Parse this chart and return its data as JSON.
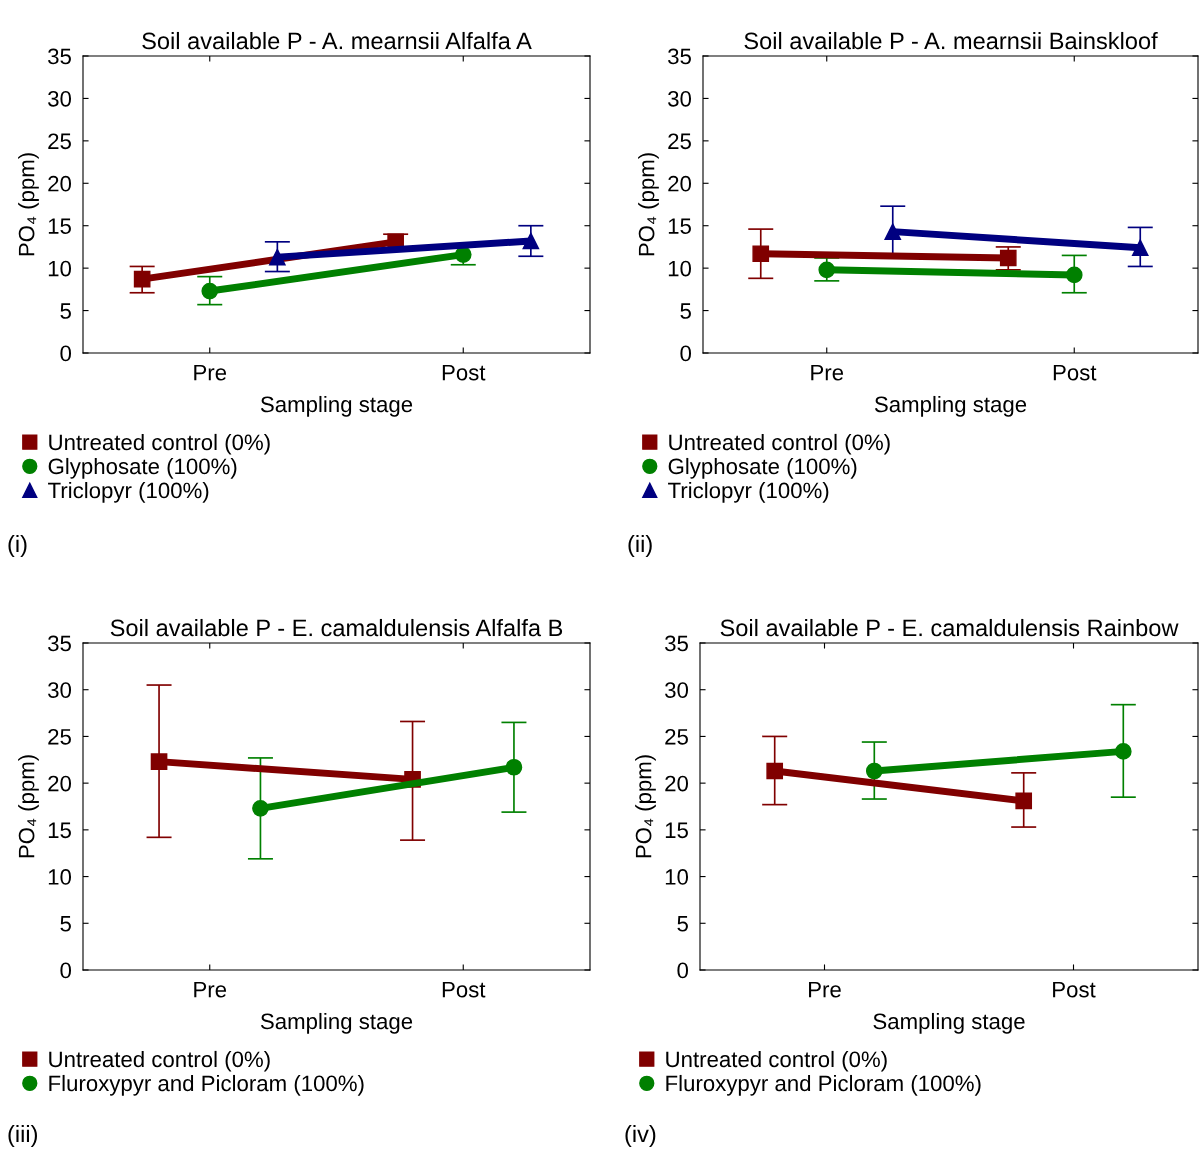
{
  "chart_data": [
    {
      "type": "line",
      "title": "Soil available P - A. mearnsii Alfalfa A",
      "xlabel": "Sampling stage",
      "ylabel": "PO₄ (ppm)",
      "categories": [
        "Pre",
        "Post"
      ],
      "ylim": [
        0,
        35
      ],
      "yticks": [
        0,
        5,
        10,
        15,
        20,
        25,
        30,
        35
      ],
      "grid": false,
      "legend": "bottom",
      "line_style": "solid",
      "annotations": [
        "(i)"
      ],
      "series": [
        {
          "name": "Untreated control (0%)",
          "color": "#800000",
          "marker": "square",
          "values": [
            8.7,
            13.1
          ],
          "errors": [
            [
              7.1,
              10.2
            ],
            [
              12.3,
              14.0
            ]
          ]
        },
        {
          "name": "Glyphosate (100%)",
          "color": "#008000",
          "marker": "circle",
          "values": [
            7.3,
            11.6
          ],
          "errors": [
            [
              5.7,
              9.0
            ],
            [
              10.4,
              12.5
            ]
          ]
        },
        {
          "name": "Triclopyr (100%)",
          "color": "#000080",
          "marker": "triangle",
          "values": [
            11.3,
            13.2
          ],
          "errors": [
            [
              9.6,
              13.1
            ],
            [
              11.4,
              15.0
            ]
          ]
        }
      ]
    },
    {
      "type": "line",
      "title": "Soil available P - A. mearnsii Bainskloof",
      "xlabel": "Sampling stage",
      "ylabel": "PO₄ (ppm)",
      "categories": [
        "Pre",
        "Post"
      ],
      "ylim": [
        0,
        35
      ],
      "yticks": [
        0,
        5,
        10,
        15,
        20,
        25,
        30,
        35
      ],
      "grid": false,
      "legend": "bottom",
      "line_style": "solid",
      "annotations": [
        "(ii)"
      ],
      "series": [
        {
          "name": "Untreated control (0%)",
          "color": "#800000",
          "marker": "square",
          "values": [
            11.7,
            11.2
          ],
          "errors": [
            [
              8.8,
              14.6
            ],
            [
              9.8,
              12.5
            ]
          ]
        },
        {
          "name": "Glyphosate (100%)",
          "color": "#008000",
          "marker": "circle",
          "values": [
            9.8,
            9.2
          ],
          "errors": [
            [
              8.5,
              11.2
            ],
            [
              7.1,
              11.5
            ]
          ]
        },
        {
          "name": "Triclopyr (100%)",
          "color": "#000080",
          "marker": "triangle",
          "values": [
            14.3,
            12.4
          ],
          "errors": [
            [
              11.3,
              17.3
            ],
            [
              10.2,
              14.8
            ]
          ]
        }
      ]
    },
    {
      "type": "line",
      "title": "Soil available P - E. camaldulensis Alfalfa B",
      "xlabel": "Sampling stage",
      "ylabel": "PO₄ (ppm)",
      "categories": [
        "Pre",
        "Post"
      ],
      "ylim": [
        0,
        35
      ],
      "yticks": [
        0,
        5,
        10,
        15,
        20,
        25,
        30,
        35
      ],
      "grid": false,
      "legend": "bottom",
      "line_style": "solid",
      "annotations": [
        "(iii)"
      ],
      "series": [
        {
          "name": "Untreated control (0%)",
          "color": "#800000",
          "marker": "square",
          "values": [
            22.3,
            20.4
          ],
          "errors": [
            [
              14.2,
              30.5
            ],
            [
              13.9,
              26.6
            ]
          ]
        },
        {
          "name": "Fluroxypyr and Picloram (100%)",
          "color": "#008000",
          "marker": "circle",
          "values": [
            17.3,
            21.7
          ],
          "errors": [
            [
              11.9,
              22.7
            ],
            [
              16.9,
              26.5
            ]
          ]
        }
      ]
    },
    {
      "type": "line",
      "title": "Soil available P - E. camaldulensis Rainbow",
      "xlabel": "Sampling stage",
      "ylabel": "PO₄ (ppm)",
      "categories": [
        "Pre",
        "Post"
      ],
      "ylim": [
        0,
        35
      ],
      "yticks": [
        0,
        5,
        10,
        15,
        20,
        25,
        30,
        35
      ],
      "grid": false,
      "legend": "bottom",
      "line_style": "solid",
      "annotations": [
        "(iv)"
      ],
      "series": [
        {
          "name": "Untreated control (0%)",
          "color": "#800000",
          "marker": "square",
          "values": [
            21.3,
            18.1
          ],
          "errors": [
            [
              17.7,
              25.0
            ],
            [
              15.3,
              21.1
            ]
          ]
        },
        {
          "name": "Fluroxypyr and Picloram (100%)",
          "color": "#008000",
          "marker": "circle",
          "values": [
            21.3,
            23.4
          ],
          "errors": [
            [
              18.3,
              24.4
            ],
            [
              18.5,
              28.4
            ]
          ]
        }
      ]
    }
  ]
}
